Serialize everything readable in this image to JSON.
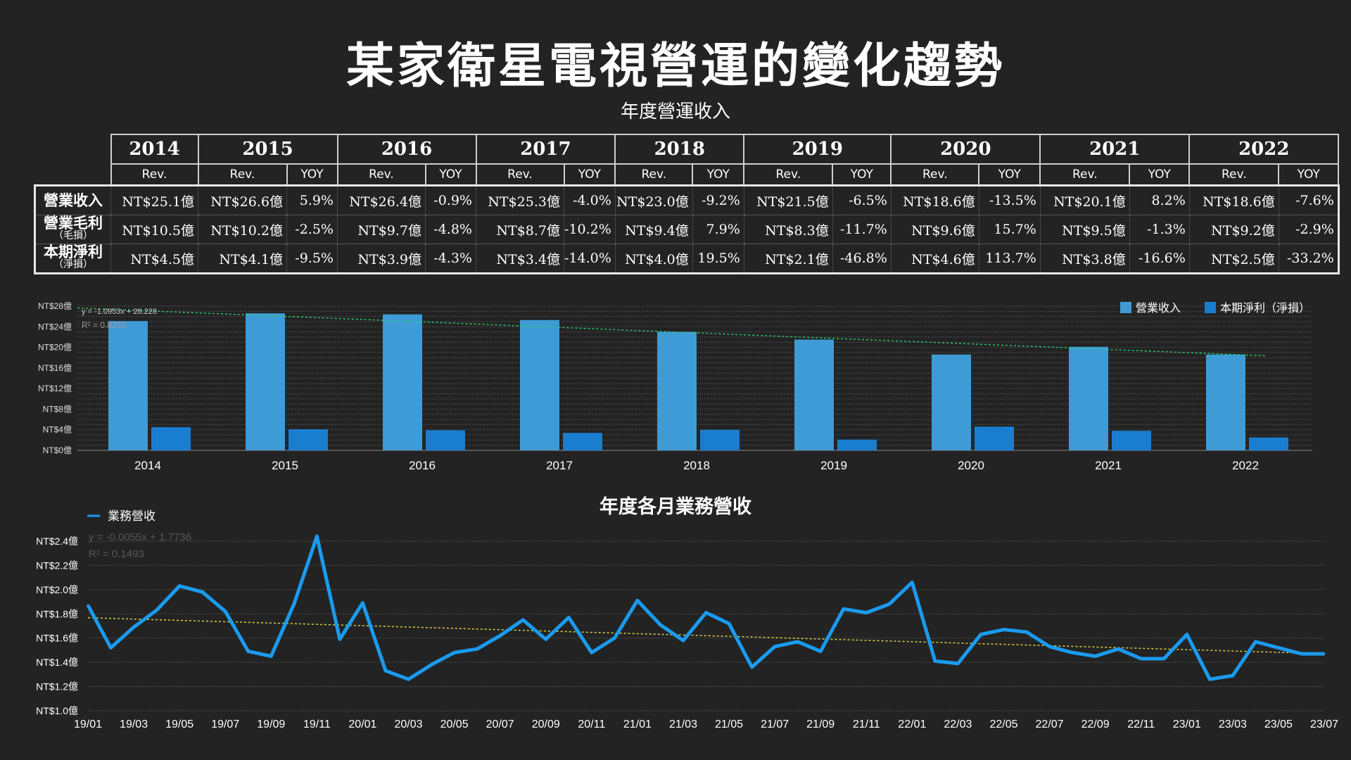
{
  "title": "某家衛星電視營運的變化趨勢",
  "table_title": "年度營運收入",
  "table": {
    "years": [
      "2014",
      "2015",
      "2016",
      "2017",
      "2018",
      "2019",
      "2020",
      "2021",
      "2022"
    ],
    "rev_label": "Rev.",
    "yoy_label": "YOY",
    "rows": [
      {
        "label": "營業收入",
        "sub": "",
        "rev": [
          "NT$25.1億",
          "NT$26.6億",
          "NT$26.4億",
          "NT$25.3億",
          "NT$23.0億",
          "NT$21.5億",
          "NT$18.6億",
          "NT$20.1億",
          "NT$18.6億"
        ],
        "yoy": [
          "",
          "5.9%",
          "-0.9%",
          "-4.0%",
          "-9.2%",
          "-6.5%",
          "-13.5%",
          "8.2%",
          "-7.6%"
        ]
      },
      {
        "label": "營業毛利",
        "sub": "（毛損）",
        "rev": [
          "NT$10.5億",
          "NT$10.2億",
          "NT$9.7億",
          "NT$8.7億",
          "NT$9.4億",
          "NT$8.3億",
          "NT$9.6億",
          "NT$9.5億",
          "NT$9.2億"
        ],
        "yoy": [
          "",
          "-2.5%",
          "-4.8%",
          "-10.2%",
          "7.9%",
          "-11.7%",
          "15.7%",
          "-1.3%",
          "-2.9%"
        ]
      },
      {
        "label": "本期淨利",
        "sub": "（淨損）",
        "rev": [
          "NT$4.5億",
          "NT$4.1億",
          "NT$3.9億",
          "NT$3.4億",
          "NT$4.0億",
          "NT$2.1億",
          "NT$4.6億",
          "NT$3.8億",
          "NT$2.5億"
        ],
        "yoy": [
          "",
          "-9.5%",
          "-4.3%",
          "-14.0%",
          "19.5%",
          "-46.8%",
          "113.7%",
          "-16.6%",
          "-33.2%"
        ]
      }
    ]
  },
  "chart_data": [
    {
      "type": "bar",
      "categories": [
        "2014",
        "2015",
        "2016",
        "2017",
        "2018",
        "2019",
        "2020",
        "2021",
        "2022"
      ],
      "series": [
        {
          "name": "營業收入",
          "values": [
            25.1,
            26.6,
            26.4,
            25.3,
            23.0,
            21.5,
            18.6,
            20.1,
            18.6
          ],
          "color": "#3f9bd5"
        },
        {
          "name": "本期淨利（淨損）",
          "values": [
            4.5,
            4.1,
            3.9,
            3.4,
            4.0,
            2.1,
            4.6,
            3.8,
            2.5
          ],
          "color": "#1a7ed0"
        }
      ],
      "yticks": [
        "NT$0億",
        "NT$4億",
        "NT$8億",
        "NT$12億",
        "NT$16億",
        "NT$20億",
        "NT$24億",
        "NT$28億"
      ],
      "ylim": [
        0,
        28
      ],
      "trendline": {
        "equation": "y = -1.0953x + 28.228",
        "r2": "R² = 0.8233",
        "color": "#2ecc71"
      },
      "legend": "top-right",
      "grid": true
    },
    {
      "type": "line",
      "title": "年度各月業務營收",
      "x": [
        "19/01",
        "19/02",
        "19/03",
        "19/04",
        "19/05",
        "19/06",
        "19/07",
        "19/08",
        "19/09",
        "19/10",
        "19/11",
        "19/12",
        "20/01",
        "20/02",
        "20/03",
        "20/04",
        "20/05",
        "20/06",
        "20/07",
        "20/08",
        "20/09",
        "20/10",
        "20/11",
        "20/12",
        "21/01",
        "21/02",
        "21/03",
        "21/04",
        "21/05",
        "21/06",
        "21/07",
        "21/08",
        "21/09",
        "21/10",
        "21/11",
        "21/12",
        "22/01",
        "22/02",
        "22/03",
        "22/04",
        "22/05",
        "22/06",
        "22/07",
        "22/08",
        "22/09",
        "22/10",
        "22/11",
        "22/12",
        "23/01",
        "23/02",
        "23/03",
        "23/04",
        "23/05",
        "23/06",
        "23/07"
      ],
      "xticks": [
        "19/01",
        "19/03",
        "19/05",
        "19/07",
        "19/09",
        "19/11",
        "20/01",
        "20/03",
        "20/05",
        "20/07",
        "20/09",
        "20/11",
        "21/01",
        "21/03",
        "21/05",
        "21/07",
        "21/09",
        "21/11",
        "22/01",
        "22/03",
        "22/05",
        "22/07",
        "22/09",
        "22/11",
        "23/01",
        "23/03",
        "23/05",
        "23/07"
      ],
      "series": [
        {
          "name": "業務營收",
          "color": "#1a9bf0",
          "values": [
            1.87,
            1.52,
            1.69,
            1.83,
            2.03,
            1.98,
            1.82,
            1.49,
            1.45,
            1.88,
            2.44,
            1.59,
            1.89,
            1.33,
            1.26,
            1.38,
            1.48,
            1.51,
            1.62,
            1.75,
            1.59,
            1.77,
            1.48,
            1.6,
            1.91,
            1.71,
            1.58,
            1.81,
            1.72,
            1.36,
            1.53,
            1.57,
            1.49,
            1.84,
            1.81,
            1.88,
            2.06,
            1.41,
            1.39,
            1.63,
            1.67,
            1.65,
            1.53,
            1.48,
            1.45,
            1.51,
            1.43,
            1.43,
            1.63,
            1.26,
            1.29,
            1.57,
            1.52,
            1.47,
            1.47
          ]
        }
      ],
      "yticks": [
        "NT$1.0億",
        "NT$1.2億",
        "NT$1.4億",
        "NT$1.6億",
        "NT$1.8億",
        "NT$2.0億",
        "NT$2.2億",
        "NT$2.4億"
      ],
      "ylim": [
        1.0,
        2.4
      ],
      "trendline": {
        "equation": "y = -0.0055x + 1.7736",
        "r2": "R² = 0.1493",
        "color": "#d4d24a"
      },
      "legend": "top-left",
      "grid": true
    }
  ]
}
